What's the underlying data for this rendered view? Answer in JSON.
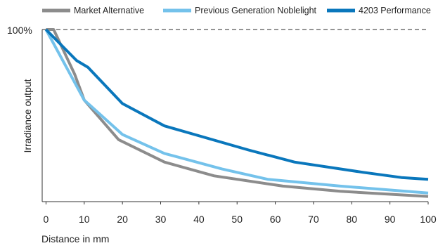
{
  "chart_data": {
    "type": "line",
    "title": "",
    "xlabel": "Distance in mm",
    "ylabel": "Irradiance output",
    "xlim": [
      -1,
      100
    ],
    "ylim": [
      0,
      100
    ],
    "x_ticks": [
      0,
      10,
      20,
      30,
      40,
      50,
      60,
      70,
      80,
      90,
      100
    ],
    "x_tick_labels": [
      "0",
      "10",
      "20",
      "30",
      "40",
      "50",
      "60",
      "70",
      "80",
      "90",
      "100"
    ],
    "y_tick_label": "100%",
    "reference_line_y": 100,
    "legend_position": "top",
    "grid": false,
    "series": [
      {
        "name": "Market Alternative",
        "color": "#8c8c8c",
        "x": [
          0,
          2,
          7.5,
          10,
          19,
          31,
          44,
          62,
          77,
          100
        ],
        "y": [
          100,
          100,
          74,
          59,
          36,
          23,
          15,
          9,
          6,
          3
        ]
      },
      {
        "name": "Previous Generation Noblelight",
        "color": "#74c2eb",
        "x": [
          0,
          10,
          20,
          31,
          46,
          58,
          77,
          100
        ],
        "y": [
          100,
          59,
          39,
          28,
          19,
          13,
          9,
          5
        ]
      },
      {
        "name": "4203 Performance",
        "color": "#0a77bc",
        "x": [
          0,
          8,
          11,
          20,
          31,
          53,
          65,
          83,
          93,
          100
        ],
        "y": [
          100,
          82,
          78,
          57,
          44,
          30,
          23,
          17,
          14,
          13
        ]
      }
    ]
  }
}
